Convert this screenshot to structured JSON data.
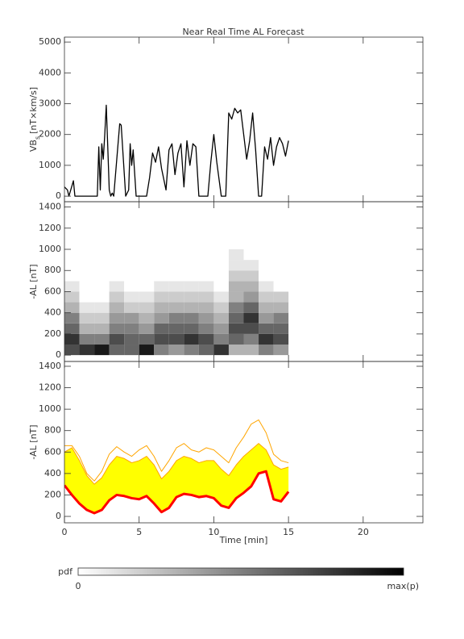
{
  "chart_data": [
    {
      "type": "line",
      "title": "Near Real Time AL Forecast",
      "ylabel": "VB",
      "ylabel_sub": "s",
      "ylabel_unit": "[nT×km/s]",
      "xlim": [
        0,
        24
      ],
      "xticks": [
        0,
        5,
        10,
        15,
        20
      ],
      "ylim": [
        -180,
        5160
      ],
      "yticks": [
        0,
        1000,
        2000,
        3000,
        4000,
        5000
      ],
      "x": [
        0,
        0.2,
        0.3,
        0.6,
        0.7,
        2.2,
        2.3,
        2.4,
        2.5,
        2.6,
        2.7,
        2.8,
        2.9,
        3.0,
        3.1,
        3.2,
        3.3,
        3.7,
        3.8,
        4.1,
        4.3,
        4.4,
        4.5,
        4.6,
        4.8,
        5.3,
        5.5,
        5.7,
        5.9,
        6.1,
        6.3,
        6.5,
        6.8,
        7.0,
        7.2,
        7.4,
        7.6,
        7.8,
        8.0,
        8.2,
        8.4,
        8.6,
        8.8,
        9.0,
        9.3,
        9.6,
        9.8,
        10.0,
        10.2,
        10.5,
        10.8,
        11.0,
        11.2,
        11.4,
        11.6,
        11.8,
        12.0,
        12.2,
        12.4,
        12.6,
        12.8,
        13.0,
        13.2,
        13.4,
        13.6,
        13.8,
        14.0,
        14.2,
        14.4,
        14.6,
        14.8,
        15.0
      ],
      "series": [
        {
          "color": "#000000",
          "width": 1.3,
          "values": [
            300,
            200,
            0,
            500,
            0,
            0,
            1600,
            200,
            1700,
            1200,
            2000,
            2950,
            1600,
            200,
            0,
            100,
            0,
            2350,
            2300,
            0,
            200,
            1700,
            1000,
            1500,
            0,
            0,
            0,
            600,
            1400,
            1100,
            1600,
            900,
            200,
            1500,
            1700,
            700,
            1400,
            1700,
            300,
            1800,
            1000,
            1700,
            1600,
            0,
            0,
            0,
            1100,
            2000,
            1100,
            0,
            0,
            2700,
            2500,
            2850,
            2700,
            2800,
            2000,
            1200,
            1800,
            2700,
            1500,
            0,
            0,
            1600,
            1200,
            1900,
            1000,
            1600,
            1900,
            1700,
            1300,
            1800
          ]
        }
      ]
    },
    {
      "type": "heatmap",
      "ylabel": "-AL [nT]",
      "xlim": [
        0,
        24
      ],
      "xticks": [
        0,
        5,
        10,
        15,
        20
      ],
      "ylim": [
        -60,
        1450
      ],
      "yticks": [
        0,
        200,
        400,
        600,
        800,
        1000,
        1200,
        1400
      ],
      "x_bins": [
        0,
        1,
        2,
        3,
        4,
        5,
        6,
        7,
        8,
        9,
        10,
        11,
        12,
        13,
        14,
        15
      ],
      "y_bins": [
        0,
        100,
        200,
        300,
        400,
        500,
        600,
        700,
        800,
        900,
        1000
      ],
      "z": [
        [
          0.7,
          0.8,
          0.6,
          0.5,
          0.3,
          0.2,
          0.1,
          0,
          0,
          0
        ],
        [
          0.8,
          0.5,
          0.3,
          0.2,
          0.1,
          0,
          0,
          0,
          0,
          0
        ],
        [
          0.9,
          0.5,
          0.3,
          0.2,
          0.1,
          0,
          0,
          0,
          0,
          0
        ],
        [
          0.6,
          0.7,
          0.5,
          0.4,
          0.3,
          0.2,
          0.1,
          0,
          0,
          0
        ],
        [
          0.6,
          0.6,
          0.5,
          0.4,
          0.2,
          0.1,
          0,
          0,
          0,
          0
        ],
        [
          0.9,
          0.6,
          0.4,
          0.3,
          0.2,
          0.1,
          0,
          0,
          0,
          0
        ],
        [
          0.5,
          0.7,
          0.6,
          0.4,
          0.3,
          0.2,
          0.1,
          0,
          0,
          0
        ],
        [
          0.4,
          0.7,
          0.6,
          0.5,
          0.3,
          0.2,
          0.1,
          0,
          0,
          0
        ],
        [
          0.5,
          0.8,
          0.6,
          0.5,
          0.3,
          0.2,
          0.1,
          0,
          0,
          0
        ],
        [
          0.6,
          0.7,
          0.5,
          0.4,
          0.3,
          0.2,
          0.1,
          0,
          0,
          0
        ],
        [
          0.8,
          0.5,
          0.4,
          0.3,
          0.2,
          0.1,
          0,
          0,
          0,
          0
        ],
        [
          0.3,
          0.6,
          0.7,
          0.6,
          0.5,
          0.3,
          0.3,
          0.2,
          0.1,
          0.1
        ],
        [
          0.3,
          0.5,
          0.7,
          0.8,
          0.6,
          0.4,
          0.3,
          0.2,
          0.1,
          0
        ],
        [
          0.5,
          0.8,
          0.6,
          0.4,
          0.3,
          0.2,
          0.1,
          0,
          0,
          0
        ],
        [
          0.4,
          0.7,
          0.6,
          0.5,
          0.3,
          0.2,
          0,
          0,
          0,
          0
        ]
      ]
    },
    {
      "type": "line",
      "ylabel": "-AL [nT]",
      "xlabel": "Time [min]",
      "xlim": [
        0,
        24
      ],
      "xticks": [
        0,
        5,
        10,
        15,
        20
      ],
      "ylim": [
        -60,
        1445
      ],
      "yticks": [
        0,
        200,
        400,
        600,
        800,
        1000,
        1200,
        1400
      ],
      "x": [
        0,
        0.5,
        1,
        1.5,
        2,
        2.5,
        3,
        3.5,
        4,
        4.5,
        5,
        5.5,
        6,
        6.5,
        7,
        7.5,
        8,
        8.5,
        9,
        9.5,
        10,
        10.5,
        11,
        11.5,
        12,
        12.5,
        13,
        13.5,
        14,
        14.5,
        15
      ],
      "series": [
        {
          "color": "#ffff00",
          "width": 1,
          "fill": true,
          "fill_to": 2,
          "values": [
            600,
            640,
            520,
            380,
            300,
            360,
            480,
            560,
            540,
            500,
            520,
            560,
            480,
            350,
            420,
            520,
            560,
            540,
            500,
            520,
            520,
            440,
            380,
            480,
            560,
            620,
            680,
            620,
            480,
            440,
            460
          ]
        },
        {
          "color": "#ffa500",
          "width": 1,
          "values": [
            660,
            660,
            560,
            400,
            330,
            420,
            580,
            650,
            600,
            560,
            620,
            660,
            560,
            420,
            520,
            640,
            680,
            620,
            600,
            640,
            620,
            560,
            500,
            640,
            740,
            860,
            900,
            780,
            580,
            520,
            500
          ]
        },
        {
          "color": "#ff0000",
          "width": 3,
          "values": [
            290,
            200,
            120,
            60,
            30,
            60,
            150,
            200,
            190,
            170,
            160,
            190,
            120,
            40,
            80,
            180,
            210,
            200,
            180,
            190,
            170,
            100,
            80,
            170,
            220,
            280,
            400,
            420,
            160,
            140,
            230
          ]
        }
      ]
    }
  ],
  "colorbar": {
    "label": "pdf",
    "min_label": "0",
    "max_label": "max(p)"
  }
}
